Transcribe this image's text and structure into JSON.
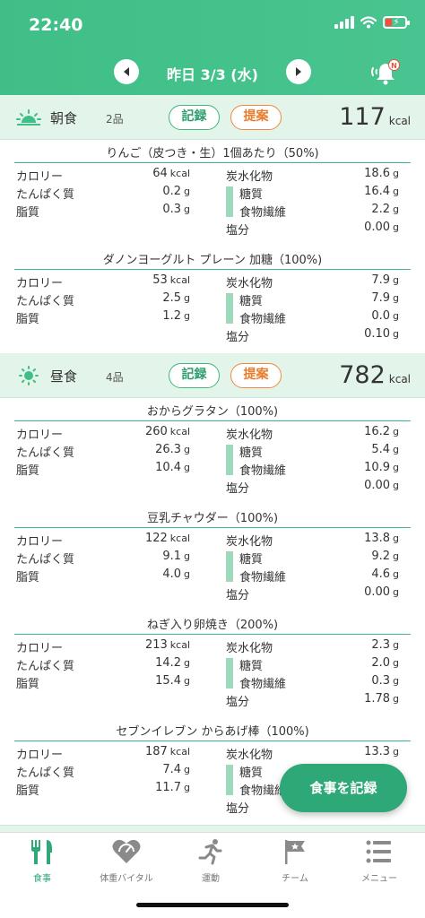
{
  "status": {
    "time": "22:40"
  },
  "date_nav": {
    "label": "昨日 3/3 (水)"
  },
  "notification": {
    "badge": "N"
  },
  "meals": [
    {
      "name": "朝食",
      "count": "2品",
      "record_label": "記録",
      "suggest_label": "提案",
      "kcal": "117",
      "kcal_unit": "kcal",
      "icon": "sunrise-icon",
      "foods": [
        {
          "title": "りんご（皮つき・生）1個あたり（50%)",
          "calorie": "64",
          "protein": "0.2",
          "fat": "0.3",
          "carb": "18.6",
          "sugar": "16.4",
          "fiber": "2.2",
          "salt": "0.00"
        },
        {
          "title": "ダノンヨーグルト プレーン 加糖（100%)",
          "calorie": "53",
          "protein": "2.5",
          "fat": "1.2",
          "carb": "7.9",
          "sugar": "7.9",
          "fiber": "0.0",
          "salt": "0.10"
        }
      ]
    },
    {
      "name": "昼食",
      "count": "4品",
      "record_label": "記録",
      "suggest_label": "提案",
      "kcal": "782",
      "kcal_unit": "kcal",
      "icon": "sun-icon",
      "foods": [
        {
          "title": "おからグラタン（100%)",
          "calorie": "260",
          "protein": "26.3",
          "fat": "10.4",
          "carb": "16.2",
          "sugar": "5.4",
          "fiber": "10.9",
          "salt": "0.00"
        },
        {
          "title": "豆乳チャウダー（100%)",
          "calorie": "122",
          "protein": "9.1",
          "fat": "4.0",
          "carb": "13.8",
          "sugar": "9.2",
          "fiber": "4.6",
          "salt": "0.00"
        },
        {
          "title": "ねぎ入り卵焼き（200%)",
          "calorie": "213",
          "protein": "14.2",
          "fat": "15.4",
          "carb": "2.3",
          "sugar": "2.0",
          "fiber": "0.3",
          "salt": "1.78"
        },
        {
          "title": "セブンイレブン からあげ棒（100%)",
          "calorie": "187",
          "protein": "7.4",
          "fat": "11.7",
          "carb": "13.3",
          "sugar": "",
          "fiber": "",
          "salt": ""
        }
      ]
    }
  ],
  "labels": {
    "calorie": "カロリー",
    "protein": "たんぱく質",
    "fat": "脂質",
    "carb": "炭水化物",
    "sugar": "糖質",
    "fiber": "食物繊維",
    "salt": "塩分",
    "kcal": "kcal",
    "gram": "g"
  },
  "fab": {
    "label": "食事を記録"
  },
  "tabs": [
    {
      "label": "食事",
      "icon": "fork-knife-icon"
    },
    {
      "label": "体重バイタル",
      "icon": "heart-gauge-icon"
    },
    {
      "label": "運動",
      "icon": "runner-icon"
    },
    {
      "label": "チーム",
      "icon": "flag-icon"
    },
    {
      "label": "メニュー",
      "icon": "menu-list-icon"
    }
  ],
  "colors": {
    "primary": "#3fbf87",
    "accent_orange": "#f08a3c",
    "meal_header_bg": "#e3f4eb",
    "fab": "#2ea877"
  }
}
